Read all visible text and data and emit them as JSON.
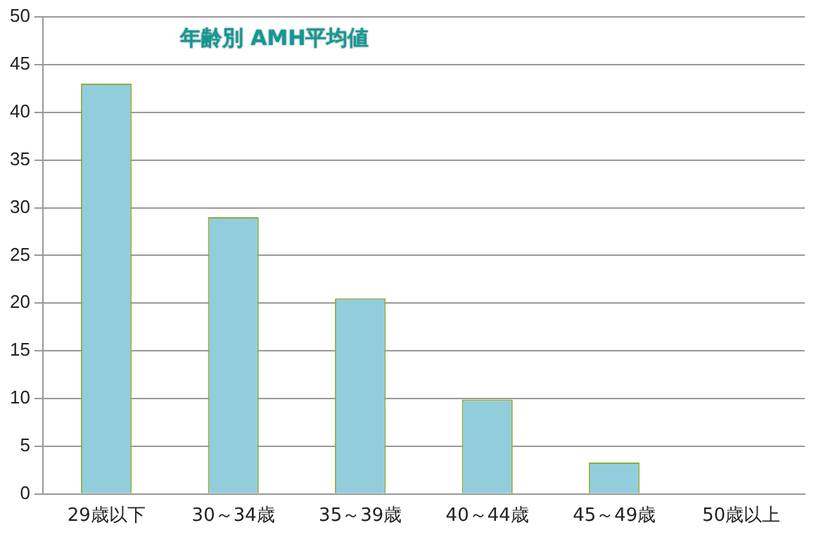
{
  "chart_data": {
    "type": "bar",
    "title": "年齢別 AMH平均値",
    "categories": [
      "29歳以下",
      "30～34歳",
      "35～39歳",
      "40～44歳",
      "45～49歳",
      "50歳以上"
    ],
    "values": [
      43,
      29,
      20.5,
      9.9,
      3.3,
      0
    ],
    "color": "#92cddc",
    "ylim": [
      0,
      50
    ],
    "yticks": [
      0,
      5,
      10,
      15,
      20,
      25,
      30,
      35,
      40,
      45,
      50
    ],
    "grid": "y",
    "legend": false
  }
}
